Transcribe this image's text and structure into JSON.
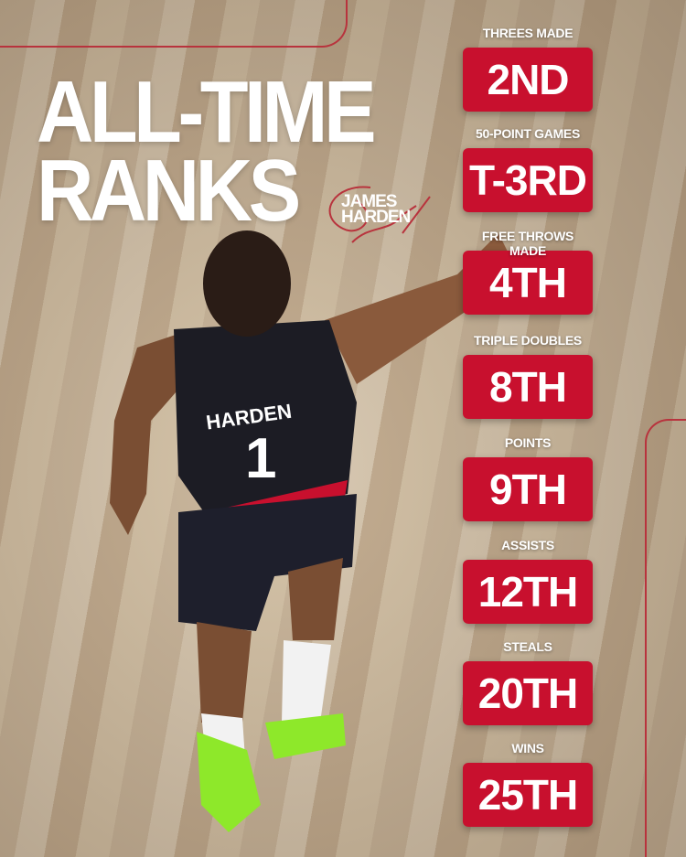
{
  "title": {
    "line1": "ALL-TIME",
    "line2": "RANKS"
  },
  "player_name": {
    "first": "JAMES",
    "last": "HARDEN"
  },
  "jersey": {
    "name": "HARDEN",
    "number": "1"
  },
  "colors": {
    "accent": "#c8102e",
    "text": "#ffffff"
  },
  "stats": [
    {
      "label": "THREES MADE",
      "rank": "2ND"
    },
    {
      "label": "50-POINT GAMES",
      "rank": "T-3RD"
    },
    {
      "label": "FREE THROWS MADE",
      "rank": "4TH"
    },
    {
      "label": "TRIPLE DOUBLES",
      "rank": "8TH"
    },
    {
      "label": "POINTS",
      "rank": "9TH"
    },
    {
      "label": "ASSISTS",
      "rank": "12TH"
    },
    {
      "label": "STEALS",
      "rank": "20TH"
    },
    {
      "label": "WINS",
      "rank": "25TH"
    }
  ]
}
